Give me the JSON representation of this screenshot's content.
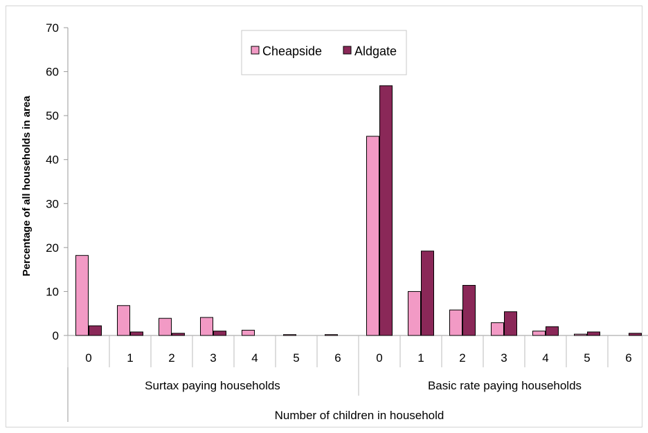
{
  "chart_data": {
    "type": "bar",
    "ylabel": "Percentage of all households in area",
    "xlabel": "Number of children in household",
    "ylim": [
      0,
      70
    ],
    "yticks": [
      0,
      10,
      20,
      30,
      40,
      50,
      60,
      70
    ],
    "groups": [
      {
        "label": "Surtax paying households",
        "categories": [
          "0",
          "1",
          "2",
          "3",
          "4",
          "5",
          "6"
        ]
      },
      {
        "label": "Basic rate paying households",
        "categories": [
          "0",
          "1",
          "2",
          "3",
          "4",
          "5",
          "6"
        ]
      }
    ],
    "series": [
      {
        "name": "Cheapside",
        "color": "#f29ac5",
        "values": [
          18.2,
          6.8,
          3.9,
          4.1,
          1.2,
          0.2,
          0.2,
          45.3,
          10.0,
          5.8,
          2.9,
          1.0,
          0.3,
          0.0
        ]
      },
      {
        "name": "Aldgate",
        "color": "#8a2858",
        "values": [
          2.2,
          0.8,
          0.5,
          1.0,
          0.0,
          0.0,
          0.0,
          56.8,
          19.2,
          11.4,
          5.4,
          2.0,
          0.8,
          0.5
        ]
      }
    ],
    "legend_position": "top-center",
    "grid": false
  }
}
